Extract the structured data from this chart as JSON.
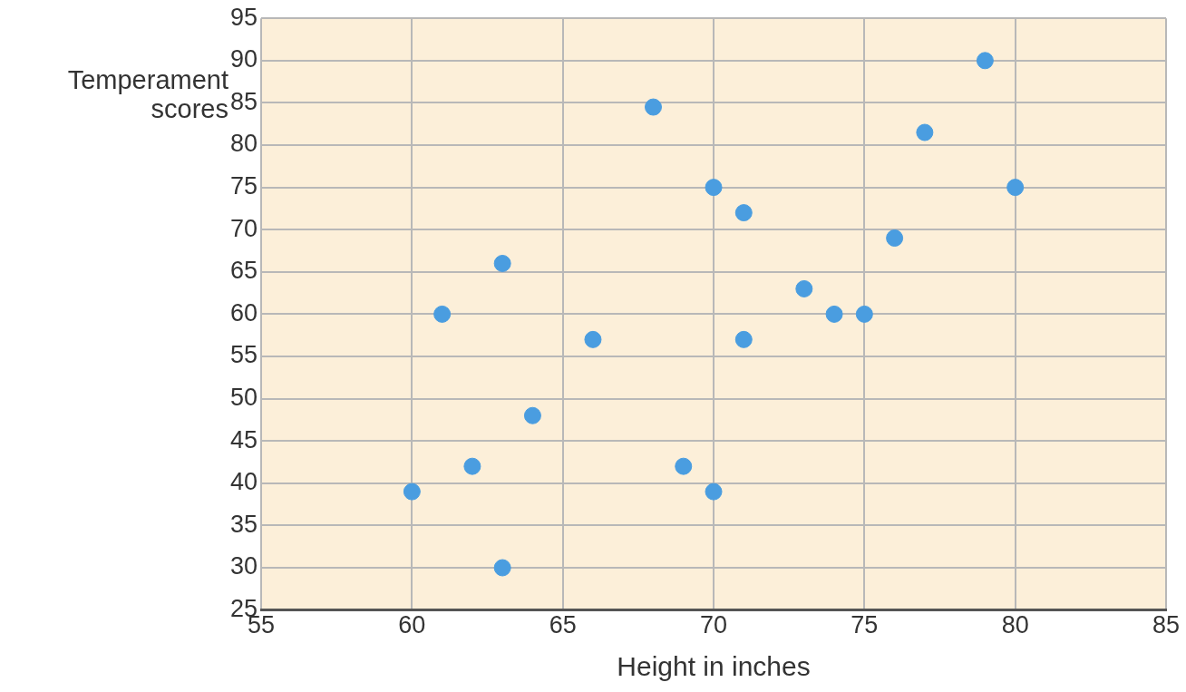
{
  "chart_data": {
    "type": "scatter",
    "xlabel": "Height in inches",
    "ylabel": "Temperament scores",
    "x": [
      60,
      61,
      62,
      63,
      63,
      64,
      66,
      68,
      69,
      70,
      70,
      71,
      71,
      73,
      74,
      75,
      76,
      77,
      79,
      80
    ],
    "values": [
      39,
      60,
      42,
      66,
      30,
      48,
      57,
      84.5,
      42,
      75,
      39,
      72,
      57,
      63,
      60,
      60,
      69,
      81.5,
      90,
      75
    ],
    "color": "#4a9de0",
    "marker": "circle",
    "xlim": [
      55,
      85
    ],
    "xticks": [
      55,
      60,
      65,
      70,
      75,
      80,
      85
    ],
    "ylim": [
      25,
      95
    ],
    "yticks": [
      25,
      30,
      35,
      40,
      45,
      50,
      55,
      60,
      65,
      70,
      75,
      80,
      85,
      90,
      95
    ],
    "grid": true,
    "legend": false
  }
}
